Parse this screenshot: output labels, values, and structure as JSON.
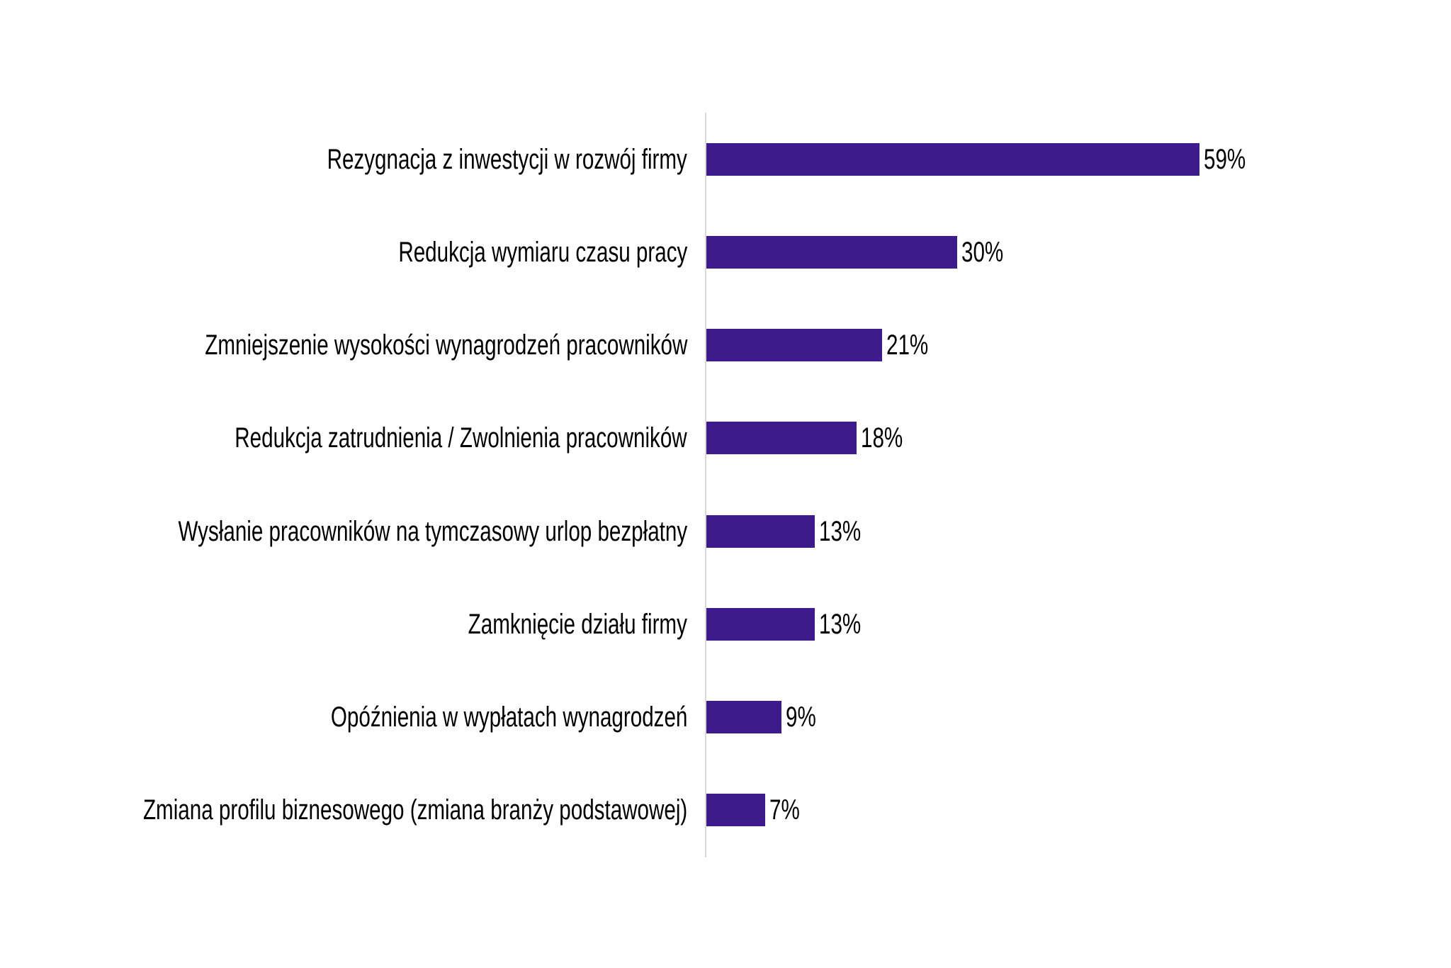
{
  "chart_data": {
    "type": "bar",
    "orientation": "horizontal",
    "title": "",
    "xlabel": "",
    "ylabel": "",
    "grid": false,
    "legend": false,
    "categories": [
      "Rezygnacja z inwestycji w rozwój firmy",
      "Redukcja wymiaru czasu pracy",
      "Zmniejszenie wysokości wynagrodzeń pracowników",
      "Redukcja zatrudnienia / Zwolnienia pracowników",
      "Wysłanie pracowników na tymczasowy urlop bezpłatny",
      "Zamknięcie działu firmy",
      "Opóźnienia w wypłatach wynagrodzeń",
      "Zmiana profilu biznesowego (zmiana branży podstawowej)"
    ],
    "values": [
      59,
      30,
      21,
      18,
      13,
      13,
      9,
      7
    ],
    "value_labels": [
      "59%",
      "30%",
      "21%",
      "18%",
      "13%",
      "13%",
      "9%",
      "7%"
    ]
  },
  "colors": {
    "bar": "#3E1B8C",
    "axis_line": "#D9D9D9",
    "text": "#000000",
    "background": "#FFFFFF"
  }
}
